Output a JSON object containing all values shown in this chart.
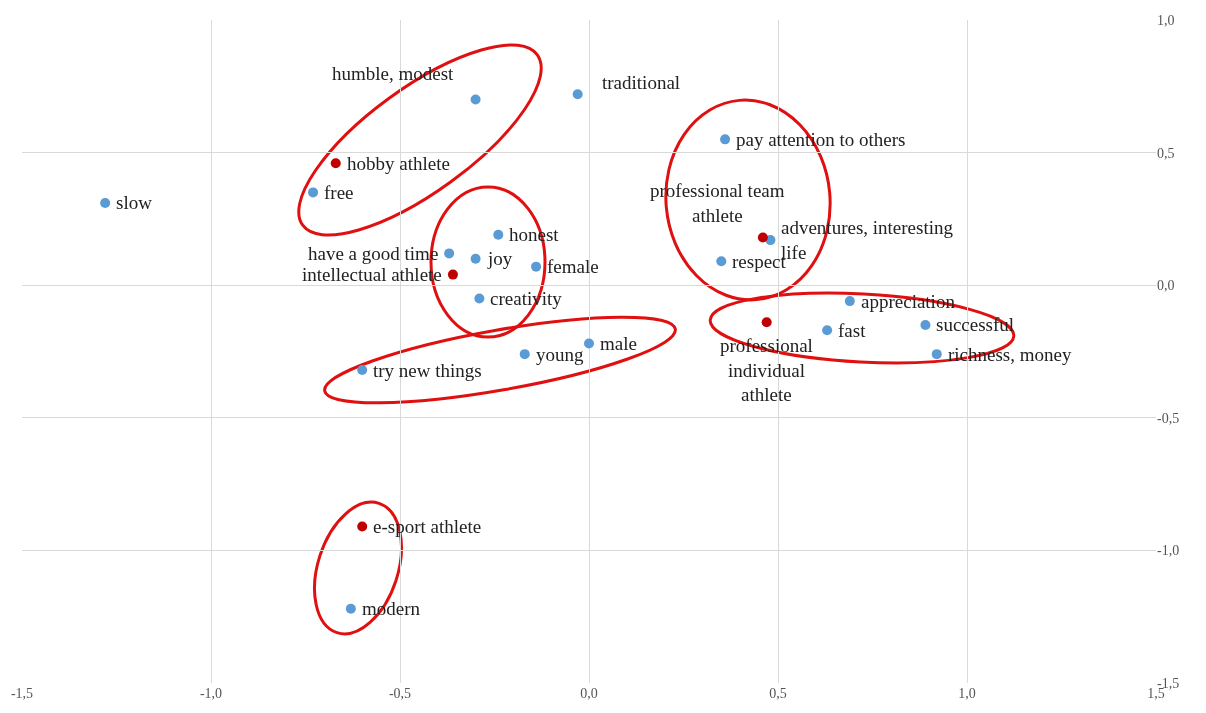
{
  "chart_data": {
    "type": "scatter",
    "marker": "circle",
    "grid": true,
    "xlim": [
      -1.5,
      1.5
    ],
    "ylim": [
      -1.5,
      1.0
    ],
    "xticks": [
      {
        "value": -1.5,
        "label": "-1,5"
      },
      {
        "value": -1.0,
        "label": "-1,0"
      },
      {
        "value": -0.5,
        "label": "-0,5"
      },
      {
        "value": 0,
        "label": "0,0"
      },
      {
        "value": 0.5,
        "label": "0,5"
      },
      {
        "value": 1.0,
        "label": "1,0"
      },
      {
        "value": 1.5,
        "label": "1,5"
      }
    ],
    "yticks": [
      {
        "value": -1.5,
        "label": "-1,5"
      },
      {
        "value": -1.0,
        "label": "-1,0"
      },
      {
        "value": -0.5,
        "label": "-0,5"
      },
      {
        "value": 0,
        "label": "0,0"
      },
      {
        "value": 0.5,
        "label": "0,5"
      },
      {
        "value": 1.0,
        "label": "1,0"
      }
    ],
    "series": [
      {
        "color": "#5b9bd5",
        "x": [
          -0.3,
          -0.03,
          -0.73,
          -1.28,
          0.36,
          0.48,
          0.35,
          -0.24,
          -0.37,
          -0.3,
          -0.14,
          -0.29,
          0.69,
          0.63,
          0.89,
          0.92,
          0.0,
          -0.17,
          -0.6,
          -0.63
        ],
        "values": [
          0.7,
          0.72,
          0.35,
          0.31,
          0.55,
          0.17,
          0.09,
          0.19,
          0.12,
          0.1,
          0.07,
          -0.05,
          -0.06,
          -0.17,
          -0.15,
          -0.26,
          -0.22,
          -0.26,
          -0.32,
          -1.22
        ]
      },
      {
        "color": "#c00000",
        "x": [
          -0.67,
          0.46,
          -0.36,
          0.47,
          -0.6
        ],
        "values": [
          0.46,
          0.18,
          0.04,
          -0.14,
          -0.91
        ]
      }
    ],
    "annotations": [
      {
        "text": "humble, modest",
        "x": -0.3,
        "y": 0.7
      },
      {
        "text": "traditional",
        "x": -0.03,
        "y": 0.72
      },
      {
        "text": "free",
        "x": -0.73,
        "y": 0.35
      },
      {
        "text": "slow",
        "x": -1.28,
        "y": 0.31
      },
      {
        "text": "pay attention to others",
        "x": 0.36,
        "y": 0.55
      },
      {
        "text": "adventures, interesting life",
        "x": 0.48,
        "y": 0.17
      },
      {
        "text": "respect",
        "x": 0.35,
        "y": 0.09
      },
      {
        "text": "honest",
        "x": -0.24,
        "y": 0.19
      },
      {
        "text": "have a good time",
        "x": -0.37,
        "y": 0.12
      },
      {
        "text": "joy",
        "x": -0.3,
        "y": 0.1
      },
      {
        "text": "female",
        "x": -0.14,
        "y": 0.07
      },
      {
        "text": "creativity",
        "x": -0.29,
        "y": -0.05
      },
      {
        "text": "appreciation",
        "x": 0.69,
        "y": -0.06
      },
      {
        "text": "fast",
        "x": 0.63,
        "y": -0.17
      },
      {
        "text": "successful",
        "x": 0.89,
        "y": -0.15
      },
      {
        "text": "richness, money",
        "x": 0.92,
        "y": -0.26
      },
      {
        "text": "male",
        "x": 0.0,
        "y": -0.22
      },
      {
        "text": "young",
        "x": -0.17,
        "y": -0.26
      },
      {
        "text": "try new things",
        "x": -0.6,
        "y": -0.32
      },
      {
        "text": "modern",
        "x": -0.63,
        "y": -1.22
      },
      {
        "text": "hobby athlete",
        "x": -0.67,
        "y": 0.46
      },
      {
        "text": "professional team athlete",
        "x": 0.46,
        "y": 0.18
      },
      {
        "text": "intellectual athlete",
        "x": -0.36,
        "y": 0.04
      },
      {
        "text": "professional individual athlete",
        "x": 0.47,
        "y": -0.14
      },
      {
        "text": "e-sport athlete",
        "x": -0.6,
        "y": -0.91
      }
    ]
  }
}
